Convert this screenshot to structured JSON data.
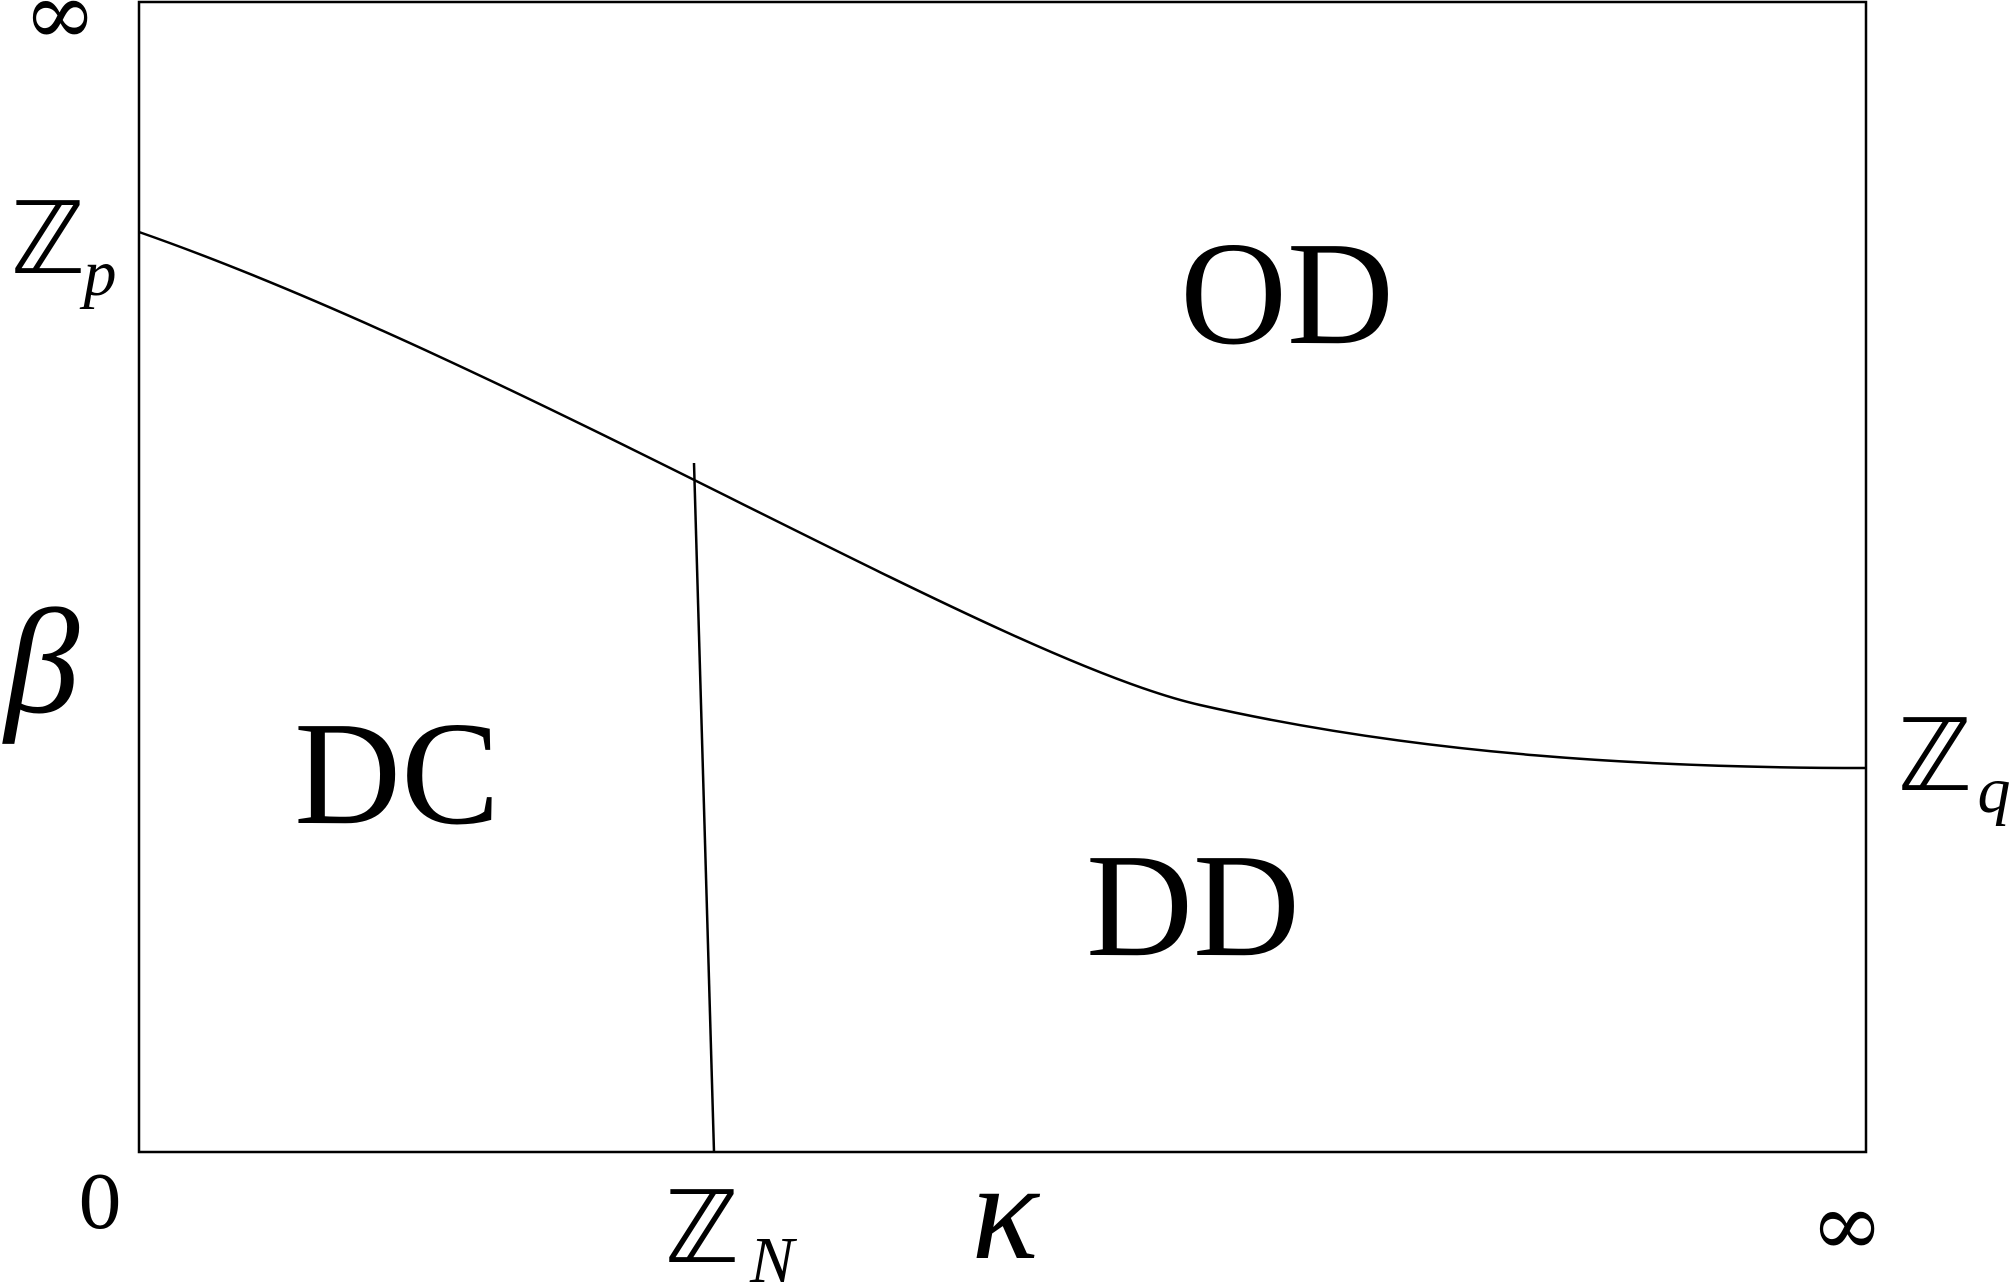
{
  "axes": {
    "x_label": "κ",
    "y_label": "β",
    "x_origin": "0",
    "x_end": "∞",
    "y_end": "∞"
  },
  "boundary_labels": {
    "zp": {
      "symbol": "ℤ",
      "subscript": "p"
    },
    "zq": {
      "symbol": "ℤ",
      "subscript": "q"
    },
    "zn": {
      "symbol": "ℤ",
      "subscript": "N"
    }
  },
  "regions": {
    "od": "OD",
    "dc": "DC",
    "dd": "DD"
  },
  "colors": {
    "line": "#000000",
    "background": "#ffffff"
  }
}
